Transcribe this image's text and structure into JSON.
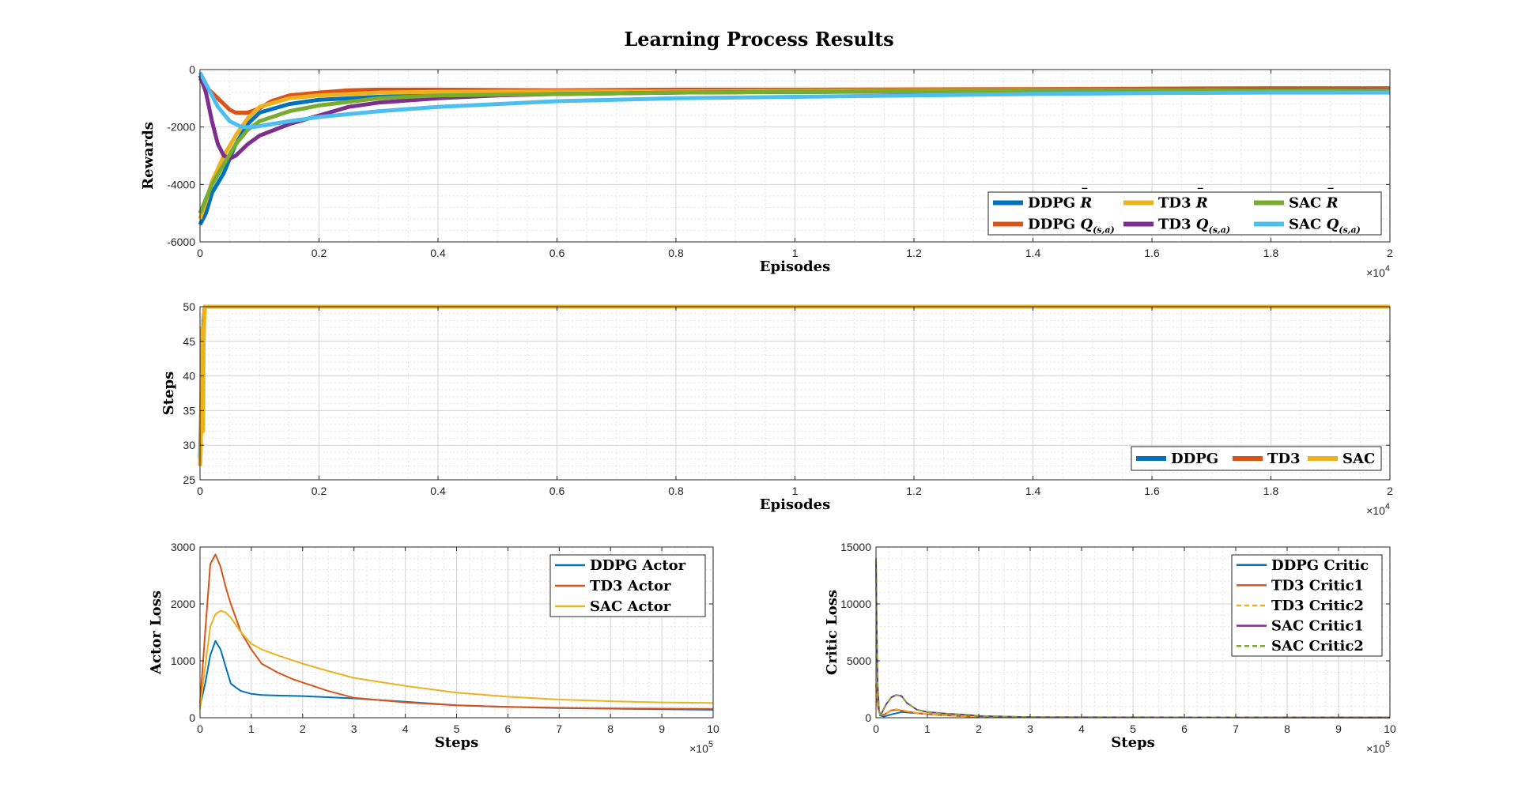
{
  "figure": {
    "title": "Learning Process Results",
    "colors": {
      "ddpg": "#0072BD",
      "td3": "#D95319",
      "sac": "#EDB120",
      "ddpg_q": "#D95319",
      "td3_q": "#7E2F8E",
      "sac_r": "#77AC30",
      "sac_q": "#4DBEEE"
    }
  },
  "chart_data": [
    {
      "id": "rewards",
      "type": "line",
      "xlabel": "Episodes",
      "ylabel": "Rewards",
      "xlim": [
        0,
        20000
      ],
      "ylim": [
        -6000,
        0
      ],
      "x_exponent": "×10",
      "x_exponent_power": "4",
      "xticks": [
        0,
        2000,
        4000,
        6000,
        8000,
        10000,
        12000,
        14000,
        16000,
        18000,
        20000
      ],
      "xtick_labels": [
        "0",
        "0.2",
        "0.4",
        "0.6",
        "0.8",
        "1",
        "1.2",
        "1.4",
        "1.6",
        "1.8",
        "2"
      ],
      "yticks": [
        -6000,
        -4000,
        -2000,
        0
      ],
      "ytick_labels": [
        "-6000",
        "-4000",
        "-2000",
        "0"
      ],
      "grid": "on",
      "legend_location": "bottom-right",
      "series": [
        {
          "name": "DDPG R̅",
          "legend_main": "DDPG R",
          "legend_sub": "",
          "color_key": "ddpg",
          "x": [
            0,
            100,
            200,
            400,
            600,
            800,
            1000,
            1500,
            2000,
            3000,
            4000,
            6000,
            8000,
            10000,
            14000,
            18000,
            20000
          ],
          "y": [
            -5400,
            -5000,
            -4300,
            -3600,
            -2600,
            -1900,
            -1500,
            -1200,
            -1050,
            -950,
            -900,
            -850,
            -800,
            -780,
            -760,
            -740,
            -750
          ]
        },
        {
          "name": "DDPG Q(s,a)",
          "legend_main": "DDPG Q",
          "legend_sub": "(s,a)",
          "color_key": "ddpg_q",
          "x": [
            0,
            100,
            200,
            400,
            500,
            600,
            800,
            1000,
            1200,
            1500,
            2000,
            2500,
            3000,
            4000,
            6000,
            8000,
            10000,
            14000,
            18000,
            20000
          ],
          "y": [
            -300,
            -600,
            -800,
            -1200,
            -1400,
            -1500,
            -1500,
            -1350,
            -1100,
            -900,
            -800,
            -720,
            -700,
            -700,
            -720,
            -700,
            -700,
            -680,
            -650,
            -650
          ]
        },
        {
          "name": "TD3 R",
          "legend_main": "TD3 R",
          "legend_sub": "",
          "color_key": "sac",
          "x": [
            0,
            100,
            200,
            400,
            600,
            800,
            1000,
            1500,
            2000,
            3000,
            4000,
            6000,
            8000,
            10000,
            14000,
            18000,
            20000
          ],
          "y": [
            -5200,
            -4600,
            -3900,
            -3000,
            -2300,
            -1700,
            -1300,
            -1000,
            -900,
            -800,
            -780,
            -760,
            -760,
            -740,
            -720,
            -700,
            -720
          ]
        },
        {
          "name": "TD3 Q(s,a)",
          "legend_main": "TD3 Q",
          "legend_sub": "(s,a)",
          "color_key": "td3_q",
          "x": [
            0,
            100,
            200,
            300,
            400,
            500,
            600,
            800,
            1000,
            1500,
            2000,
            2500,
            3000,
            4000,
            5000,
            6000,
            8000,
            10000,
            14000,
            18000,
            20000
          ],
          "y": [
            -200,
            -800,
            -1800,
            -2600,
            -3000,
            -3100,
            -3000,
            -2600,
            -2300,
            -1900,
            -1600,
            -1300,
            -1150,
            -1000,
            -900,
            -850,
            -800,
            -780,
            -740,
            -700,
            -720
          ]
        },
        {
          "name": "SAC R",
          "legend_main": "SAC R",
          "legend_sub": "",
          "color_key": "sac_r",
          "x": [
            0,
            100,
            200,
            400,
            600,
            800,
            1000,
            1500,
            2000,
            3000,
            4000,
            6000,
            8000,
            10000,
            14000,
            18000,
            20000
          ],
          "y": [
            -5000,
            -4500,
            -4000,
            -3300,
            -2600,
            -2100,
            -1800,
            -1450,
            -1250,
            -1000,
            -900,
            -850,
            -800,
            -780,
            -740,
            -720,
            -740
          ]
        },
        {
          "name": "SAC Q(s,a)",
          "legend_main": "SAC Q",
          "legend_sub": "(s,a)",
          "color_key": "sac_q",
          "x": [
            0,
            100,
            200,
            300,
            500,
            700,
            900,
            1200,
            1500,
            2000,
            3000,
            4000,
            5000,
            6000,
            8000,
            10000,
            12000,
            14000,
            16000,
            18000,
            20000
          ],
          "y": [
            -100,
            -500,
            -900,
            -1300,
            -1800,
            -2000,
            -2000,
            -1900,
            -1800,
            -1650,
            -1450,
            -1300,
            -1200,
            -1100,
            -1000,
            -950,
            -900,
            -850,
            -820,
            -800,
            -800
          ]
        }
      ]
    },
    {
      "id": "steps",
      "type": "line",
      "xlabel": "Episodes",
      "ylabel": "Steps",
      "xlim": [
        0,
        20000
      ],
      "ylim": [
        25,
        50
      ],
      "x_exponent": "×10",
      "x_exponent_power": "4",
      "xticks": [
        0,
        2000,
        4000,
        6000,
        8000,
        10000,
        12000,
        14000,
        16000,
        18000,
        20000
      ],
      "xtick_labels": [
        "0",
        "0.2",
        "0.4",
        "0.6",
        "0.8",
        "1",
        "1.2",
        "1.4",
        "1.6",
        "1.8",
        "2"
      ],
      "yticks": [
        25,
        30,
        35,
        40,
        45,
        50
      ],
      "ytick_labels": [
        "25",
        "30",
        "35",
        "40",
        "45",
        "50"
      ],
      "grid": "on",
      "legend_location": "bottom-right",
      "series": [
        {
          "name": "DDPG",
          "color_key": "ddpg",
          "x": [
            0,
            20,
            40,
            60,
            80,
            100,
            20000
          ],
          "y": [
            28,
            35,
            42,
            48,
            50,
            50,
            50
          ]
        },
        {
          "name": "TD3",
          "color_key": "td3",
          "x": [
            0,
            20,
            40,
            60,
            80,
            100,
            20000
          ],
          "y": [
            27,
            33,
            41,
            47,
            50,
            50,
            50
          ]
        },
        {
          "name": "SAC",
          "color_key": "sac",
          "x": [
            0,
            10,
            20,
            30,
            40,
            50,
            60,
            70,
            80,
            90,
            100,
            20000
          ],
          "y": [
            27,
            29,
            36,
            43,
            47,
            32,
            45,
            48,
            50,
            50,
            50,
            50
          ]
        }
      ]
    },
    {
      "id": "actor_loss",
      "type": "line",
      "xlabel": "Steps",
      "ylabel": "Actor Loss",
      "xlim": [
        0,
        1000000
      ],
      "ylim": [
        0,
        3000
      ],
      "x_exponent": "×10",
      "x_exponent_power": "5",
      "xticks": [
        0,
        100000,
        200000,
        300000,
        400000,
        500000,
        600000,
        700000,
        800000,
        900000,
        1000000
      ],
      "xtick_labels": [
        "0",
        "1",
        "2",
        "3",
        "4",
        "5",
        "6",
        "7",
        "8",
        "9",
        "10"
      ],
      "yticks": [
        0,
        1000,
        2000,
        3000
      ],
      "ytick_labels": [
        "0",
        "1000",
        "2000",
        "3000"
      ],
      "grid": "on",
      "legend_location": "top-right",
      "series": [
        {
          "name": "DDPG Actor",
          "color_key": "ddpg",
          "x": [
            0,
            10000,
            20000,
            30000,
            40000,
            50000,
            60000,
            70000,
            80000,
            100000,
            120000,
            150000,
            200000,
            300000,
            400000,
            500000,
            600000,
            700000,
            800000,
            900000,
            1000000
          ],
          "y": [
            200,
            600,
            1100,
            1350,
            1200,
            900,
            600,
            530,
            470,
            420,
            400,
            390,
            380,
            340,
            280,
            220,
            190,
            170,
            160,
            150,
            140
          ]
        },
        {
          "name": "TD3 Actor",
          "color_key": "td3",
          "x": [
            0,
            10000,
            20000,
            30000,
            40000,
            50000,
            60000,
            80000,
            100000,
            120000,
            150000,
            180000,
            200000,
            250000,
            300000,
            400000,
            500000,
            600000,
            700000,
            800000,
            900000,
            1000000
          ],
          "y": [
            250,
            1500,
            2700,
            2870,
            2650,
            2300,
            2000,
            1500,
            1200,
            950,
            800,
            680,
            620,
            470,
            350,
            270,
            220,
            190,
            175,
            165,
            160,
            155
          ]
        },
        {
          "name": "SAC Actor",
          "color_key": "sac",
          "x": [
            0,
            10000,
            20000,
            30000,
            40000,
            50000,
            60000,
            80000,
            100000,
            120000,
            150000,
            200000,
            250000,
            300000,
            400000,
            500000,
            600000,
            700000,
            800000,
            900000,
            1000000
          ],
          "y": [
            150,
            900,
            1600,
            1820,
            1880,
            1850,
            1760,
            1500,
            1300,
            1200,
            1100,
            950,
            820,
            700,
            560,
            440,
            370,
            320,
            290,
            270,
            260
          ]
        }
      ]
    },
    {
      "id": "critic_loss",
      "type": "line",
      "xlabel": "Steps",
      "ylabel": "Critic Loss",
      "xlim": [
        0,
        1000000
      ],
      "ylim": [
        0,
        15000
      ],
      "x_exponent": "×10",
      "x_exponent_power": "5",
      "xticks": [
        0,
        100000,
        200000,
        300000,
        400000,
        500000,
        600000,
        700000,
        800000,
        900000,
        1000000
      ],
      "xtick_labels": [
        "0",
        "1",
        "2",
        "3",
        "4",
        "5",
        "6",
        "7",
        "8",
        "9",
        "10"
      ],
      "yticks": [
        0,
        5000,
        10000,
        15000
      ],
      "ytick_labels": [
        "0",
        "5000",
        "10000",
        "15000"
      ],
      "grid": "on",
      "legend_location": "top-right",
      "series": [
        {
          "name": "DDPG Critic",
          "color_key": "ddpg",
          "dashed": false,
          "x": [
            0,
            3000,
            8000,
            15000,
            30000,
            50000,
            80000,
            120000,
            160000,
            200000,
            300000,
            1000000
          ],
          "y": [
            3000,
            1200,
            200,
            100,
            300,
            500,
            400,
            250,
            150,
            80,
            40,
            20
          ]
        },
        {
          "name": "TD3 Critic1",
          "color_key": "td3",
          "dashed": false,
          "x": [
            0,
            3000,
            8000,
            15000,
            30000,
            40000,
            60000,
            80000,
            120000,
            160000,
            200000,
            300000,
            1000000
          ],
          "y": [
            3000,
            1000,
            300,
            250,
            650,
            700,
            550,
            400,
            250,
            150,
            80,
            40,
            20
          ]
        },
        {
          "name": "TD3 Critic2",
          "color_key": "sac",
          "dashed": true,
          "x": [
            0,
            3000,
            8000,
            15000,
            30000,
            40000,
            60000,
            80000,
            120000,
            160000,
            200000,
            300000,
            1000000
          ],
          "y": [
            3000,
            1000,
            300,
            250,
            700,
            750,
            580,
            420,
            260,
            160,
            80,
            40,
            20
          ]
        },
        {
          "name": "SAC Critic1",
          "color_key": "td3_q",
          "dashed": false,
          "x": [
            0,
            1000,
            3000,
            6000,
            10000,
            20000,
            30000,
            40000,
            50000,
            60000,
            80000,
            100000,
            140000,
            180000,
            200000,
            300000,
            1000000
          ],
          "y": [
            14000,
            9000,
            3000,
            500,
            300,
            1200,
            1800,
            2000,
            1900,
            1300,
            700,
            500,
            350,
            250,
            150,
            50,
            20
          ]
        },
        {
          "name": "SAC Critic2",
          "color_key": "sac_r",
          "dashed": true,
          "x": [
            0,
            1000,
            3000,
            6000,
            10000,
            20000,
            30000,
            40000,
            50000,
            60000,
            80000,
            100000,
            140000,
            180000,
            200000,
            300000,
            1000000
          ],
          "y": [
            14000,
            9000,
            3000,
            500,
            300,
            1200,
            1800,
            2000,
            1900,
            1300,
            700,
            500,
            350,
            250,
            150,
            50,
            20
          ]
        }
      ]
    }
  ]
}
